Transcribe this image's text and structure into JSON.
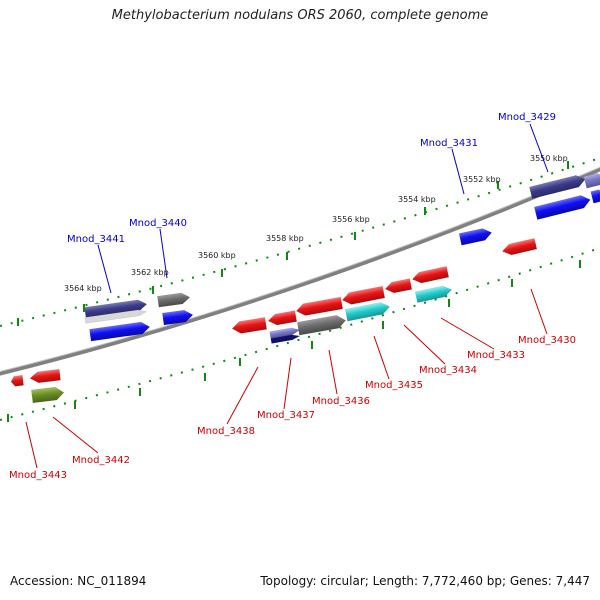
{
  "title": "Methylobacterium nodulans ORS 2060, complete genome",
  "accession": "Accession: NC_011894",
  "summary": "Topology: circular; Length: 7,772,460 bp; Genes: 7,447",
  "scale_labels": [
    "3550 kbp",
    "3552 kbp",
    "3554 kbp",
    "3556 kbp",
    "3558 kbp",
    "3560 kbp",
    "3562 kbp",
    "3564 kbp"
  ],
  "forward_gene_labels": [
    "Mnod_3429",
    "Mnod_3431",
    "Mnod_3440",
    "Mnod_3441"
  ],
  "reverse_gene_labels": [
    "Mnod_3430",
    "Mnod_3433",
    "Mnod_3434",
    "Mnod_3435",
    "Mnod_3436",
    "Mnod_3437",
    "Mnod_3438",
    "Mnod_3442",
    "Mnod_3443"
  ],
  "colors": {
    "forward_label": "#0000cc",
    "reverse_label": "#cc0000",
    "backbone": "#808080",
    "ticks": "#118811",
    "red": "#e51515",
    "blue": "#1010ee",
    "navy": "#3b3b8a",
    "gray": "#6c6c6c",
    "cyan": "#22cccc",
    "olive": "#6b8e23",
    "lavender": "#7777c4"
  }
}
